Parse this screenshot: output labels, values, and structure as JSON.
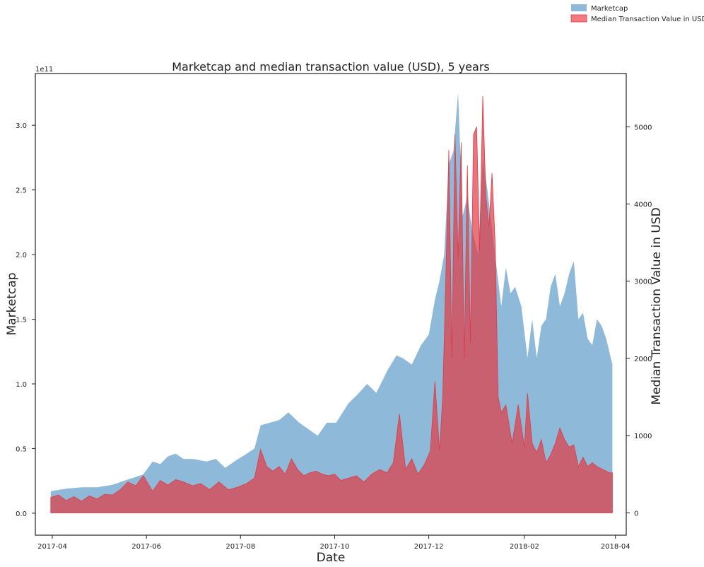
{
  "chart_data": {
    "type": "area",
    "title": "Marketcap and median transaction value (USD), 5 years",
    "xlabel": "Date",
    "ylabel": "Marketcap",
    "ylabel_right": "Median Transaction Value in USD",
    "y_offset_label": "1e11",
    "x_ticks": [
      "2017-04",
      "2017-06",
      "2017-08",
      "2017-10",
      "2017-12",
      "2018-02",
      "2018-04"
    ],
    "y_ticks": [
      "0.0",
      "0.5",
      "1.0",
      "1.5",
      "2.0",
      "2.5",
      "3.0"
    ],
    "y2_ticks": [
      "0",
      "1000",
      "2000",
      "3000",
      "4000",
      "5000"
    ],
    "xlim": [
      "2017-03-21",
      "2018-04-08"
    ],
    "ylim": [
      -0.17,
      3.4
    ],
    "y2lim": [
      -290,
      5690
    ],
    "colors": {
      "marketcap": "#8fb9d8",
      "median": "#e03a45"
    },
    "legend": {
      "placement": "top-right",
      "entries": [
        "Marketcap",
        "Median Transaction Value in USD"
      ]
    },
    "series": [
      {
        "name": "Marketcap",
        "axis": "left",
        "unit": "1e11 USD",
        "x": [
          "2017-03-31",
          "2017-04-10",
          "2017-04-20",
          "2017-04-30",
          "2017-05-10",
          "2017-05-20",
          "2017-05-25",
          "2017-05-30",
          "2017-06-05",
          "2017-06-10",
          "2017-06-15",
          "2017-06-20",
          "2017-06-25",
          "2017-07-01",
          "2017-07-10",
          "2017-07-16",
          "2017-07-22",
          "2017-07-28",
          "2017-08-05",
          "2017-08-10",
          "2017-08-14",
          "2017-08-20",
          "2017-08-26",
          "2017-09-01",
          "2017-09-08",
          "2017-09-14",
          "2017-09-20",
          "2017-09-26",
          "2017-10-02",
          "2017-10-10",
          "2017-10-16",
          "2017-10-22",
          "2017-10-28",
          "2017-11-04",
          "2017-11-10",
          "2017-11-14",
          "2017-11-20",
          "2017-11-26",
          "2017-12-01",
          "2017-12-05",
          "2017-12-08",
          "2017-12-11",
          "2017-12-14",
          "2017-12-17",
          "2017-12-20",
          "2017-12-23",
          "2017-12-26",
          "2017-12-29",
          "2018-01-02",
          "2018-01-05",
          "2018-01-08",
          "2018-01-11",
          "2018-01-14",
          "2018-01-17",
          "2018-01-20",
          "2018-01-23",
          "2018-01-26",
          "2018-01-30",
          "2018-02-03",
          "2018-02-06",
          "2018-02-09",
          "2018-02-12",
          "2018-02-15",
          "2018-02-18",
          "2018-02-21",
          "2018-02-24",
          "2018-02-27",
          "2018-03-02",
          "2018-03-05",
          "2018-03-08",
          "2018-03-11",
          "2018-03-14",
          "2018-03-17",
          "2018-03-20",
          "2018-03-23",
          "2018-03-26",
          "2018-03-30"
        ],
        "values": [
          0.17,
          0.19,
          0.2,
          0.2,
          0.22,
          0.26,
          0.28,
          0.3,
          0.4,
          0.38,
          0.44,
          0.46,
          0.42,
          0.42,
          0.4,
          0.42,
          0.35,
          0.4,
          0.46,
          0.5,
          0.68,
          0.7,
          0.72,
          0.78,
          0.7,
          0.65,
          0.6,
          0.7,
          0.7,
          0.85,
          0.92,
          1.0,
          0.93,
          1.1,
          1.22,
          1.2,
          1.15,
          1.3,
          1.38,
          1.65,
          1.8,
          2.0,
          2.7,
          2.8,
          3.25,
          2.3,
          2.45,
          2.2,
          2.0,
          2.75,
          2.5,
          2.2,
          1.9,
          1.6,
          1.9,
          1.7,
          1.75,
          1.6,
          1.2,
          1.5,
          1.2,
          1.45,
          1.5,
          1.75,
          1.85,
          1.6,
          1.7,
          1.85,
          1.95,
          1.5,
          1.55,
          1.35,
          1.3,
          1.5,
          1.45,
          1.35,
          1.15
        ]
      },
      {
        "name": "Median Transaction Value in USD",
        "axis": "right",
        "unit": "USD",
        "x": [
          "2017-03-31",
          "2017-04-05",
          "2017-04-10",
          "2017-04-15",
          "2017-04-20",
          "2017-04-25",
          "2017-04-30",
          "2017-05-05",
          "2017-05-10",
          "2017-05-15",
          "2017-05-20",
          "2017-05-25",
          "2017-05-30",
          "2017-06-05",
          "2017-06-10",
          "2017-06-15",
          "2017-06-20",
          "2017-06-25",
          "2017-07-01",
          "2017-07-06",
          "2017-07-12",
          "2017-07-18",
          "2017-07-24",
          "2017-07-30",
          "2017-08-05",
          "2017-08-10",
          "2017-08-14",
          "2017-08-18",
          "2017-08-22",
          "2017-08-26",
          "2017-08-30",
          "2017-09-03",
          "2017-09-07",
          "2017-09-11",
          "2017-09-15",
          "2017-09-19",
          "2017-09-23",
          "2017-09-27",
          "2017-10-01",
          "2017-10-05",
          "2017-10-10",
          "2017-10-15",
          "2017-10-20",
          "2017-10-25",
          "2017-10-30",
          "2017-11-04",
          "2017-11-08",
          "2017-11-12",
          "2017-11-16",
          "2017-11-20",
          "2017-11-24",
          "2017-11-28",
          "2017-12-02",
          "2017-12-05",
          "2017-12-08",
          "2017-12-10",
          "2017-12-12",
          "2017-12-14",
          "2017-12-16",
          "2017-12-18",
          "2017-12-20",
          "2017-12-22",
          "2017-12-24",
          "2017-12-26",
          "2017-12-28",
          "2017-12-30",
          "2018-01-01",
          "2018-01-03",
          "2018-01-05",
          "2018-01-07",
          "2018-01-09",
          "2018-01-11",
          "2018-01-13",
          "2018-01-15",
          "2018-01-17",
          "2018-01-20",
          "2018-01-24",
          "2018-01-28",
          "2018-02-01",
          "2018-02-03",
          "2018-02-06",
          "2018-02-09",
          "2018-02-12",
          "2018-02-15",
          "2018-02-18",
          "2018-02-21",
          "2018-02-24",
          "2018-02-27",
          "2018-03-02",
          "2018-03-05",
          "2018-03-08",
          "2018-03-11",
          "2018-03-14",
          "2018-03-17",
          "2018-03-20",
          "2018-03-24",
          "2018-03-28",
          "2018-03-30"
        ],
        "values": [
          200,
          230,
          160,
          210,
          150,
          220,
          180,
          240,
          230,
          300,
          400,
          350,
          480,
          280,
          420,
          360,
          430,
          400,
          350,
          380,
          300,
          400,
          300,
          330,
          380,
          450,
          820,
          600,
          540,
          600,
          500,
          700,
          560,
          480,
          520,
          540,
          500,
          480,
          500,
          420,
          450,
          480,
          400,
          500,
          560,
          520,
          650,
          1280,
          560,
          700,
          500,
          620,
          800,
          1700,
          800,
          1500,
          3000,
          4700,
          2000,
          4900,
          3300,
          4800,
          2000,
          4500,
          2200,
          4900,
          5000,
          3400,
          5400,
          4100,
          3700,
          4400,
          3500,
          1500,
          1300,
          1400,
          900,
          1400,
          850,
          1550,
          900,
          780,
          950,
          650,
          750,
          900,
          1100,
          950,
          850,
          880,
          600,
          720,
          600,
          650,
          600,
          560,
          520,
          520
        ]
      }
    ]
  }
}
